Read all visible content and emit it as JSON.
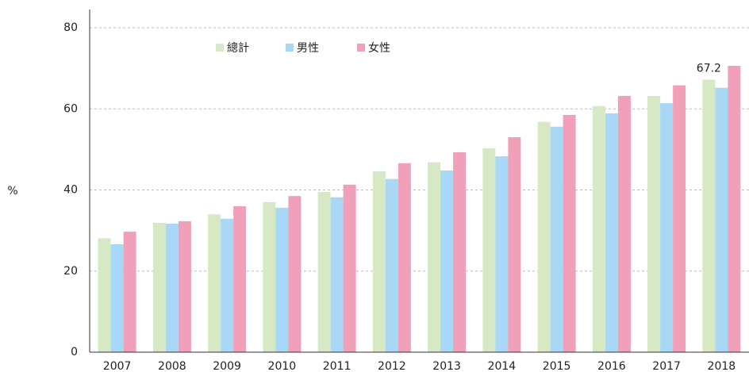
{
  "chart_data": {
    "type": "bar",
    "y_label": "%",
    "categories": [
      "2007",
      "2008",
      "2009",
      "2010",
      "2011",
      "2012",
      "2013",
      "2014",
      "2015",
      "2016",
      "2017",
      "2018"
    ],
    "series": [
      {
        "name": "總計",
        "color": "#d6e8c4",
        "values": [
          28.1,
          31.9,
          34.0,
          37.0,
          39.5,
          44.6,
          46.8,
          50.3,
          56.8,
          60.7,
          63.2,
          67.2
        ]
      },
      {
        "name": "男性",
        "color": "#a8d8f5",
        "values": [
          26.6,
          31.7,
          32.9,
          35.6,
          38.2,
          42.7,
          44.8,
          48.3,
          55.6,
          58.9,
          61.4,
          65.2
        ]
      },
      {
        "name": "女性",
        "color": "#f0a0b8",
        "values": [
          29.7,
          32.3,
          36.0,
          38.5,
          41.3,
          46.6,
          49.3,
          53.0,
          58.5,
          63.2,
          65.8,
          70.6
        ]
      }
    ],
    "labeled_point": "chart_data.series.0.values.11",
    "ylim": [
      0,
      80
    ],
    "yticks": [
      0,
      20,
      40,
      60,
      80
    ],
    "grid": true
  }
}
